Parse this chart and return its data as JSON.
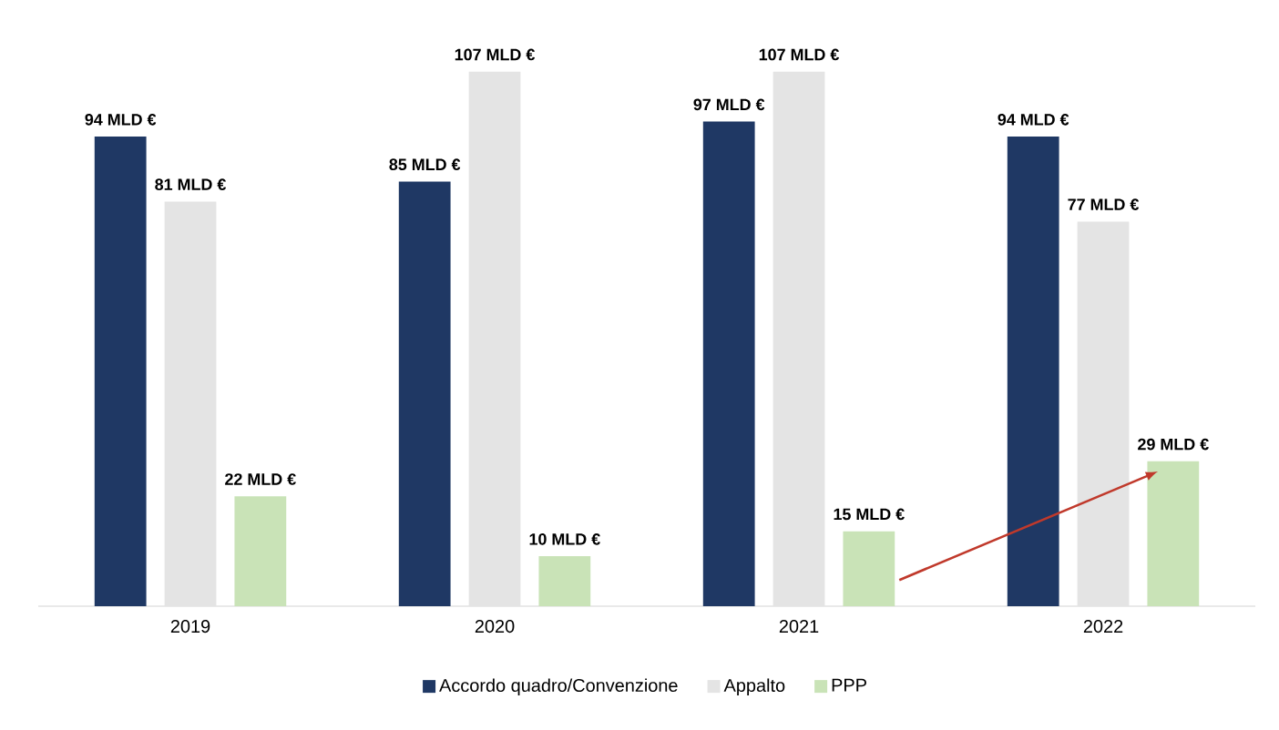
{
  "chart_data": {
    "type": "bar",
    "categories": [
      "2019",
      "2020",
      "2021",
      "2022"
    ],
    "series": [
      {
        "name": "Accordo quadro/Convenzione",
        "color": "#1f3864",
        "values": [
          94,
          85,
          97,
          94
        ],
        "value_labels": [
          "94 MLD €",
          "85 MLD €",
          "97 MLD €",
          "94 MLD €"
        ]
      },
      {
        "name": "Appalto",
        "color": "#e4e4e4",
        "values": [
          81,
          107,
          107,
          77
        ],
        "value_labels": [
          "81 MLD €",
          "107 MLD €",
          "107 MLD €",
          "77 MLD €"
        ]
      },
      {
        "name": "PPP",
        "color": "#c9e3b7",
        "values": [
          22,
          10,
          15,
          29
        ],
        "value_labels": [
          "22 MLD €",
          "10 MLD €",
          "15 MLD €",
          "29 MLD €"
        ]
      }
    ],
    "tick_labels": "x",
    "legend": "bottom"
  }
}
